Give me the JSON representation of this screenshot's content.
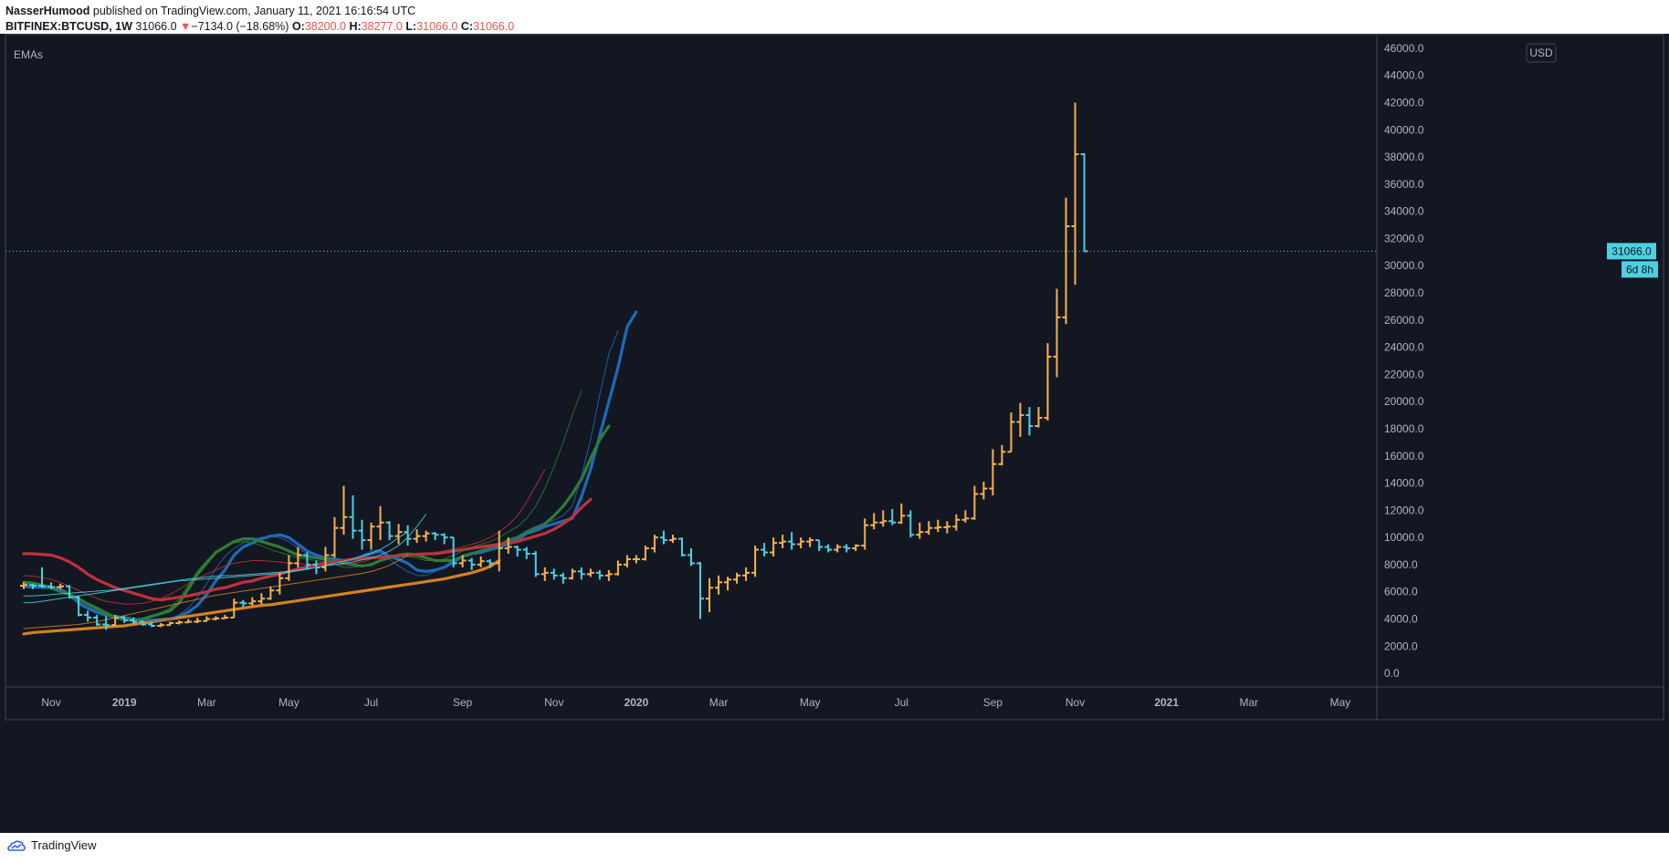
{
  "header": {
    "author": "NasserHumood",
    "published_text": "published on TradingView.com, January 11, 2021 16:16:54 UTC",
    "symbol": "BITFINEX:BTCUSD, 1W",
    "last": "31066.0",
    "change_arrow": "▼",
    "change": "−7134.0 (−18.68%)",
    "o_label": "O:",
    "o_value": "38200.0",
    "h_label": "H:",
    "h_value": "38277.0",
    "l_label": "L:",
    "l_value": "31066.0",
    "c_label": "C:",
    "c_value": "31066.0"
  },
  "footer": {
    "brand": "TradingView",
    "logo_icon": "tradingview-logo-icon"
  },
  "colors": {
    "background": "#131722",
    "axis_text": "#b2b5be",
    "border": "#434651",
    "bull_bar": "#f7b24f",
    "bear_bar": "#4dd0e1",
    "ema_blue": "#1e6bb8",
    "ema_green": "#2e7d32",
    "ema_red": "#c0323c",
    "ema_orange": "#d4831c",
    "last_price_tag": "#4dd0e1"
  },
  "chart_data": {
    "type": "ohlc",
    "title": "",
    "indicator_label": "EMAs",
    "currency_label": "USD",
    "last_price_label": "31066.0",
    "countdown_label": "6d 8h",
    "x_tick_labels": [
      "Nov",
      "2019",
      "Mar",
      "May",
      "Jul",
      "Sep",
      "Nov",
      "2020",
      "Mar",
      "May",
      "Jul",
      "Sep",
      "Nov",
      "2021",
      "Mar",
      "May"
    ],
    "x_tick_weeks": [
      3,
      11,
      20,
      29,
      38,
      48,
      58,
      67,
      76,
      86,
      96,
      106,
      115,
      125,
      134,
      144
    ],
    "x_tick_bold": [
      false,
      true,
      false,
      false,
      false,
      false,
      false,
      true,
      false,
      false,
      false,
      false,
      false,
      true,
      false,
      false
    ],
    "x_range_weeks": [
      -2,
      148
    ],
    "y_ticks": [
      0,
      2000,
      4000,
      6000,
      8000,
      10000,
      12000,
      14000,
      16000,
      18000,
      20000,
      22000,
      24000,
      26000,
      28000,
      30000,
      32000,
      34000,
      36000,
      38000,
      40000,
      42000,
      44000,
      46000
    ],
    "y_range": [
      -1000,
      47000
    ],
    "y_tick_labels": [
      "0.0",
      "2000.0",
      "4000.0",
      "6000.0",
      "8000.0",
      "10000.0",
      "12000.0",
      "14000.0",
      "16000.0",
      "18000.0",
      "20000.0",
      "22000.0",
      "24000.0",
      "26000.0",
      "28000.0",
      "30000.0",
      "32000.0",
      "34000.0",
      "36000.0",
      "38000.0",
      "40000.0",
      "42000.0",
      "44000.0",
      "46000.0"
    ],
    "last_price": 31066,
    "close": [
      6500,
      6450,
      6400,
      6350,
      6400,
      5600,
      4300,
      4100,
      3600,
      3550,
      4100,
      3900,
      3800,
      3600,
      3500,
      3550,
      3700,
      3750,
      3800,
      3850,
      4000,
      4050,
      4100,
      5200,
      5150,
      5300,
      5500,
      6100,
      7000,
      8100,
      8700,
      8000,
      7800,
      8700,
      10700,
      11500,
      10500,
      9800,
      10800,
      11100,
      10100,
      10400,
      9900,
      10100,
      10300,
      10200,
      10000,
      8100,
      8300,
      8000,
      8250,
      8100,
      9200,
      9300,
      9100,
      8800,
      7300,
      7400,
      7200,
      7000,
      7500,
      7300,
      7400,
      7200,
      7300,
      8000,
      8400,
      8400,
      9200,
      10000,
      9800,
      9900,
      8700,
      8100,
      5500,
      6300,
      6700,
      6900,
      7200,
      7400,
      9100,
      8900,
      9600,
      9700,
      9500,
      9700,
      9800,
      9300,
      9100,
      9300,
      9200,
      9400,
      10900,
      11100,
      11200,
      11100,
      11600,
      10200,
      10400,
      10700,
      10750,
      10800,
      11300,
      11400,
      13200,
      13600,
      15400,
      16300,
      18500,
      19000,
      18200,
      18800,
      23300,
      26200,
      32900,
      38200,
      31066
    ],
    "open": [
      6450,
      6500,
      6450,
      6400,
      6350,
      6400,
      5600,
      4300,
      4100,
      3600,
      3550,
      4100,
      3900,
      3800,
      3600,
      3500,
      3550,
      3700,
      3750,
      3800,
      3850,
      4000,
      4050,
      4100,
      5200,
      5150,
      5300,
      5500,
      6100,
      7000,
      8100,
      8700,
      8000,
      7800,
      8700,
      10700,
      11500,
      10500,
      9800,
      10800,
      11100,
      10100,
      10400,
      9900,
      10100,
      10300,
      10200,
      10000,
      8100,
      8300,
      8000,
      8250,
      8100,
      9200,
      9300,
      9100,
      8800,
      7300,
      7400,
      7200,
      7000,
      7500,
      7300,
      7400,
      7200,
      7300,
      8000,
      8400,
      8400,
      9200,
      10000,
      9800,
      9900,
      8700,
      8100,
      5500,
      6300,
      6700,
      6900,
      7200,
      7400,
      9100,
      8900,
      9600,
      9700,
      9500,
      9700,
      9800,
      9300,
      9100,
      9300,
      9200,
      9400,
      10900,
      11100,
      11200,
      11100,
      11600,
      10200,
      10400,
      10700,
      10750,
      10800,
      11300,
      11400,
      13200,
      13600,
      15400,
      16300,
      18500,
      19000,
      18200,
      18800,
      23300,
      26200,
      32900,
      38200
    ],
    "high": [
      6700,
      6600,
      7800,
      6700,
      6600,
      6500,
      5700,
      4600,
      4300,
      4200,
      4300,
      4200,
      4100,
      3900,
      3800,
      3700,
      3800,
      3900,
      4000,
      4100,
      4200,
      4200,
      4300,
      5500,
      5400,
      5600,
      5900,
      6400,
      7400,
      8700,
      9300,
      8900,
      8300,
      9300,
      11500,
      13800,
      13100,
      11300,
      11100,
      12300,
      11200,
      11000,
      10900,
      10600,
      10500,
      10400,
      10300,
      10000,
      8700,
      8500,
      8600,
      8400,
      10500,
      10000,
      9400,
      9300,
      9000,
      7800,
      7700,
      7400,
      7700,
      7800,
      7700,
      7600,
      7600,
      8300,
      8700,
      8700,
      9400,
      10200,
      10500,
      10200,
      10000,
      9200,
      8200,
      7000,
      7200,
      7100,
      7400,
      7800,
      9400,
      9600,
      10000,
      10200,
      10400,
      10000,
      10000,
      9800,
      9500,
      9500,
      9500,
      9500,
      11400,
      11800,
      12000,
      12100,
      12500,
      12000,
      11100,
      11200,
      11300,
      11200,
      11700,
      12000,
      13800,
      14100,
      16500,
      16800,
      19200,
      19900,
      19600,
      19600,
      24300,
      28300,
      35000,
      42000,
      38277
    ],
    "low": [
      6200,
      6200,
      6300,
      6200,
      6200,
      5500,
      4200,
      3800,
      3500,
      3200,
      3500,
      3700,
      3600,
      3500,
      3400,
      3400,
      3500,
      3600,
      3700,
      3700,
      3800,
      3900,
      4000,
      4100,
      4900,
      5000,
      5100,
      5400,
      5800,
      6800,
      7800,
      7700,
      7300,
      7500,
      8500,
      10200,
      9900,
      9100,
      9100,
      9800,
      9800,
      9500,
      9400,
      9600,
      9700,
      9800,
      9500,
      7800,
      7800,
      7600,
      7800,
      7800,
      7500,
      8800,
      8600,
      8400,
      7100,
      6800,
      6900,
      6600,
      6900,
      6900,
      7100,
      6900,
      6800,
      7200,
      7800,
      8100,
      8300,
      8900,
      9500,
      9600,
      8600,
      7900,
      4000,
      4500,
      5800,
      6100,
      6600,
      6800,
      7100,
      8600,
      8600,
      9200,
      9100,
      9200,
      9300,
      9000,
      8900,
      8900,
      8900,
      9000,
      9100,
      10600,
      10800,
      10900,
      11000,
      10000,
      9900,
      10200,
      10400,
      10300,
      10500,
      11100,
      11300,
      12800,
      13100,
      15300,
      16300,
      17400,
      17500,
      18100,
      18600,
      21800,
      25700,
      28600,
      31066
    ],
    "ema_series": [
      {
        "color": "#1e6bb8",
        "width": 3.2,
        "values": [
          6400,
          6350,
          6320,
          6300,
          6200,
          5800,
          5200,
          4800,
          4500,
          4300,
          4200,
          4100,
          4000,
          3900,
          3900,
          3950,
          4000,
          4200,
          4500,
          5000,
          5800,
          6800,
          7600,
          8700,
          9300,
          9600,
          9900,
          10100,
          10200,
          10000,
          9500,
          9000,
          8700,
          8500,
          8400,
          8300,
          8400,
          8600,
          8800,
          9000,
          8600,
          8400,
          8100,
          7600,
          7500,
          7600,
          7800,
          8200,
          8600,
          8800,
          8900,
          9100,
          9300,
          9500,
          9800,
          10300,
          10500,
          10800,
          11000,
          11200,
          11400,
          13000,
          15000,
          17500,
          20000,
          22500,
          25500,
          26600
        ]
      },
      {
        "color": "#2e7d32",
        "width": 3.2,
        "values": [
          6700,
          6650,
          6500,
          6300,
          6050,
          5800,
          5500,
          5100,
          4800,
          4450,
          4100,
          3950,
          3900,
          4000,
          4200,
          4400,
          4600,
          5200,
          6200,
          7300,
          8100,
          8900,
          9300,
          9700,
          9900,
          9900,
          9700,
          9500,
          9300,
          9000,
          8700,
          8600,
          8500,
          8400,
          8300,
          8100,
          8000,
          7900,
          8000,
          8300,
          8500,
          8700,
          8800,
          8700,
          8500,
          8300,
          8300,
          8300,
          8600,
          8800,
          9000,
          9200,
          9400,
          9800,
          10000,
          10400,
          10700,
          11000,
          11600,
          12300,
          13200,
          14300,
          15800,
          17200,
          18200
        ]
      },
      {
        "color": "#c0323c",
        "width": 3.2,
        "values": [
          8800,
          8800,
          8750,
          8700,
          8500,
          8200,
          7800,
          7300,
          6900,
          6600,
          6300,
          6100,
          5900,
          5700,
          5500,
          5400,
          5500,
          5600,
          5700,
          5850,
          6000,
          6200,
          6300,
          6500,
          6700,
          6800,
          7000,
          7150,
          7300,
          7500,
          7700,
          7850,
          8000,
          8100,
          8200,
          8300,
          8400,
          8450,
          8500,
          8550,
          8600,
          8650,
          8700,
          8750,
          8800,
          8800,
          8900,
          9000,
          9100,
          9200,
          9300,
          9400,
          9500,
          9600,
          9700,
          9900,
          10100,
          10300,
          10600,
          11000,
          11500,
          12200,
          12800
        ]
      },
      {
        "color": "#d4831c",
        "width": 3.2,
        "values": [
          2900,
          3000,
          3050,
          3100,
          3150,
          3200,
          3250,
          3300,
          3350,
          3400,
          3450,
          3500,
          3600,
          3700,
          3800,
          3900,
          4000,
          4100,
          4200,
          4300,
          4400,
          4500,
          4600,
          4700,
          4800,
          4900,
          5000,
          5050,
          5150,
          5250,
          5350,
          5450,
          5550,
          5650,
          5750,
          5850,
          5950,
          6050,
          6150,
          6250,
          6350,
          6450,
          6550,
          6650,
          6750,
          6850,
          6950,
          7100,
          7250,
          7400,
          7600,
          7850,
          8300
        ]
      },
      {
        "color": "#1e6bb8",
        "width": 1,
        "values": [
          6400,
          6350,
          6300,
          6250,
          6100,
          5700,
          5100,
          4700,
          4400,
          4200,
          4100,
          4000,
          3900,
          3850,
          3850,
          3900,
          4000,
          4300,
          4800,
          5600,
          6600,
          7700,
          8600,
          9200,
          9600,
          9900,
          10000,
          10100,
          10000,
          9700,
          9200,
          8800,
          8500,
          8300,
          8200,
          8200,
          8400,
          8700,
          9000,
          9100,
          8400,
          7900,
          7500,
          7200,
          7200,
          7500,
          7900,
          8300,
          8700,
          8900,
          9000,
          9100,
          9300,
          9600,
          10000,
          10500,
          10800,
          11000,
          11300,
          11600,
          12300,
          14500,
          17200,
          20500,
          23500,
          25200
        ]
      },
      {
        "color": "#2e7d32",
        "width": 1,
        "values": [
          6600,
          6550,
          6400,
          6200,
          5950,
          5700,
          5400,
          5000,
          4650,
          4300,
          4000,
          3900,
          3900,
          4000,
          4200,
          4450,
          4800,
          5500,
          6500,
          7500,
          8300,
          8900,
          9300,
          9600,
          9700,
          9600,
          9400,
          9100,
          8900,
          8700,
          8500,
          8400,
          8300,
          8200,
          8000,
          7800,
          7800,
          7900,
          8100,
          8300,
          8500,
          8600,
          8600,
          8500,
          8300,
          8300,
          8400,
          8700,
          9000,
          9300,
          9500,
          9700,
          10000,
          10400,
          10800,
          11400,
          12300,
          13600,
          15200,
          17000,
          19000,
          20800
        ]
      },
      {
        "color": "#c0323c",
        "width": 1,
        "values": [
          7200,
          7150,
          7050,
          6900,
          6700,
          6400,
          6100,
          5800,
          5500,
          5300,
          5200,
          5100,
          5100,
          5150,
          5300,
          5500,
          5800,
          6200,
          6600,
          7000,
          7300,
          7600,
          7900,
          8100,
          8200,
          8300,
          8300,
          8250,
          8200,
          8100,
          8100,
          8000,
          8000,
          8000,
          8000,
          8000,
          8100,
          8200,
          8400,
          8500,
          8600,
          8700,
          8750,
          8800,
          8800,
          8900,
          9000,
          9150,
          9300,
          9500,
          9700,
          10000,
          10400,
          10900,
          11600,
          12600,
          13800,
          15000
        ]
      },
      {
        "color": "#4dd0e1",
        "width": 1,
        "values": [
          5700,
          5700,
          5750,
          5800,
          5850,
          5900,
          5950,
          6000,
          6050,
          6100,
          6150,
          6250,
          6350,
          6450,
          6550,
          6650,
          6750,
          6850,
          6950,
          7000,
          7100,
          7150,
          7200,
          7200,
          7250,
          7300,
          7350,
          7400,
          7450,
          7500,
          7600,
          7700,
          7800,
          7900,
          8000,
          8100,
          8200,
          8350,
          8500,
          8700,
          9000,
          9400,
          10000,
          10800,
          11700
        ]
      },
      {
        "color": "#4dd0e1",
        "width": 1,
        "values": [
          5200,
          5200,
          5300,
          5400,
          5500,
          5600,
          5700,
          5800,
          5900,
          6000,
          6100,
          6200,
          6300,
          6400,
          6500,
          6600,
          6700,
          6800,
          6850,
          6900,
          6950,
          7000,
          7050,
          7100,
          7150,
          7200,
          7250,
          7300,
          7350,
          7450,
          7550,
          7650,
          7800,
          7950,
          8100,
          8250,
          8400,
          8600,
          8850,
          9100,
          9500,
          10000,
          10400
        ]
      },
      {
        "color": "#d4831c",
        "width": 1,
        "values": [
          3300,
          3350,
          3400,
          3450,
          3500,
          3550,
          3600,
          3700,
          3800,
          3950,
          4100,
          4250,
          4400,
          4550,
          4700,
          4850,
          5000,
          5150,
          5300,
          5450,
          5600,
          5750,
          5850,
          5950,
          6050,
          6150,
          6250,
          6350,
          6450,
          6550,
          6650,
          6750,
          6850,
          6950,
          7050,
          7150,
          7250,
          7350,
          7500,
          7700,
          7950,
          8300,
          8700
        ]
      }
    ]
  }
}
